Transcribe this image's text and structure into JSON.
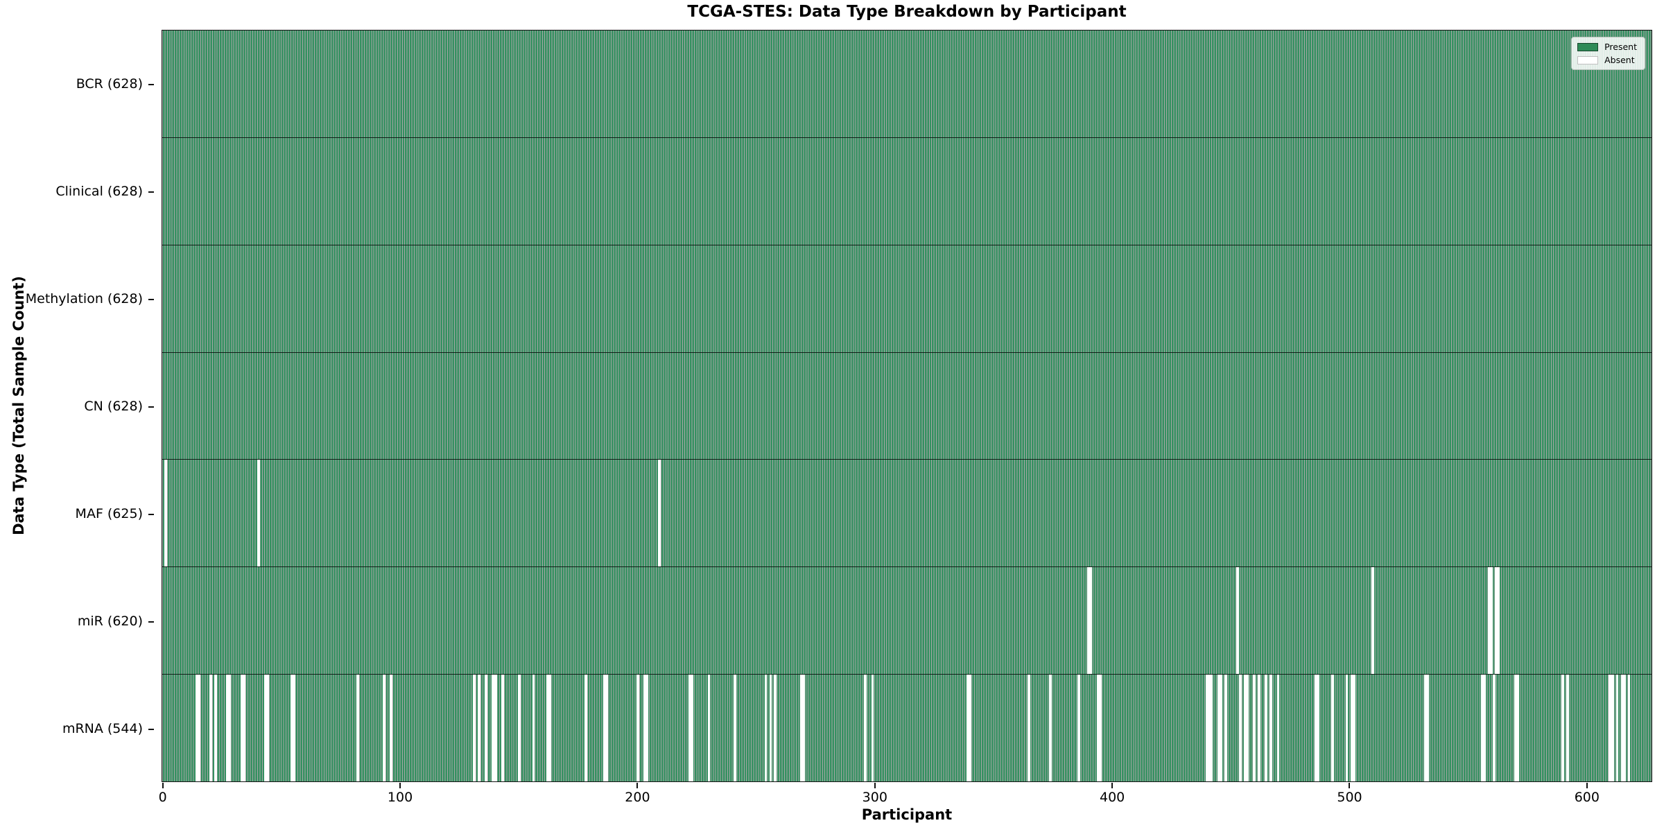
{
  "chart_data": {
    "type": "heatmap",
    "title": "TCGA-STES: Data Type Breakdown by Participant",
    "xlabel": "Participant",
    "ylabel": "Data Type (Total Sample Count)",
    "n_participants": 628,
    "xlim": [
      -0.5,
      627.5
    ],
    "x_ticks": [
      0,
      100,
      200,
      300,
      400,
      500,
      600
    ],
    "grid": false,
    "legend_position": "upper right",
    "legend": {
      "present_label": "Present",
      "absent_label": "Absent"
    },
    "colors": {
      "present": "#2e8b57",
      "cell_fill": "#349060",
      "cell_edge": "rgba(0,0,0,0.34)",
      "absent": "#ffffff"
    },
    "rows": [
      {
        "label": "BCR (628)",
        "data_type": "BCR",
        "present_count": 628,
        "absent_participants": []
      },
      {
        "label": "Clinical (628)",
        "data_type": "Clinical",
        "present_count": 628,
        "absent_participants": []
      },
      {
        "label": "Methylation (628)",
        "data_type": "Methylation",
        "present_count": 628,
        "absent_participants": []
      },
      {
        "label": "CN (628)",
        "data_type": "CN",
        "present_count": 628,
        "absent_participants": []
      },
      {
        "label": "MAF (625)",
        "data_type": "MAF",
        "present_count": 625,
        "absent_participants": [
          1,
          40,
          209
        ]
      },
      {
        "label": "miR (620)",
        "data_type": "miR",
        "present_count": 620,
        "absent_participants": [
          390,
          391,
          453,
          510,
          559,
          560,
          562,
          563
        ]
      },
      {
        "label": "mRNA (544)",
        "data_type": "mRNA",
        "present_count": 544,
        "absent_participants": [
          14,
          15,
          20,
          22,
          27,
          28,
          33,
          34,
          43,
          44,
          54,
          55,
          82,
          93,
          96,
          131,
          133,
          136,
          139,
          140,
          143,
          150,
          156,
          162,
          163,
          178,
          186,
          187,
          200,
          203,
          204,
          222,
          223,
          230,
          241,
          254,
          256,
          258,
          269,
          270,
          296,
          299,
          339,
          340,
          365,
          374,
          386,
          394,
          395,
          440,
          441,
          442,
          445,
          446,
          448,
          454,
          456,
          457,
          460,
          462,
          465,
          467,
          470,
          486,
          487,
          493,
          499,
          501,
          502,
          532,
          533,
          556,
          557,
          561,
          570,
          571,
          590,
          592,
          610,
          611,
          613,
          615,
          616,
          618
        ]
      }
    ]
  }
}
